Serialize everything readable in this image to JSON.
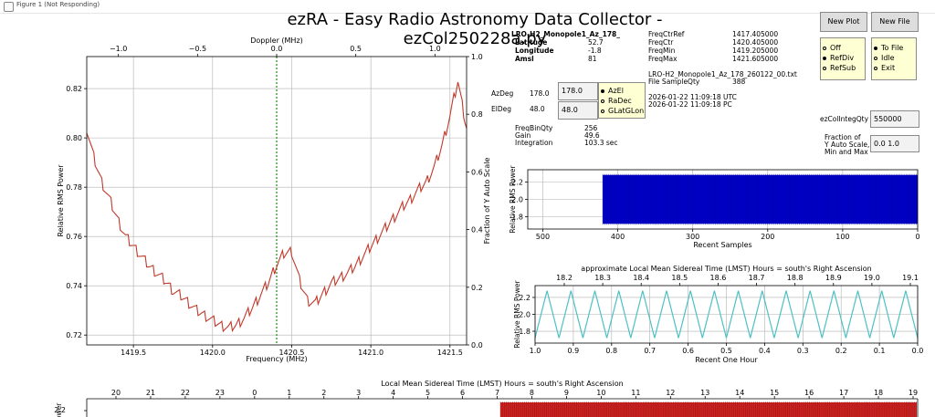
{
  "window": {
    "title": "Figure 1 (Not Responding)"
  },
  "app_title": "ezRA - Easy Radio Astronomy Data Collector - ezCol250228a.py",
  "info_left": [
    {
      "label": "LRO-H2_Monopole1_Az_178_",
      "value": ""
    },
    {
      "label": "Latitude",
      "value": "52.7"
    },
    {
      "label": "Longitude",
      "value": "-1.8"
    },
    {
      "label": "Amsl",
      "value": "81"
    }
  ],
  "info_freq": [
    {
      "label": "FreqCtrRef",
      "value": "1417.405000"
    },
    {
      "label": "FreqCtr",
      "value": "1420.405000"
    },
    {
      "label": "FreqMin",
      "value": "1419.205000"
    },
    {
      "label": "FreqMax",
      "value": "1421.605000"
    }
  ],
  "file_name": "LRO-H2_Monopole1_Az_178_260122_00.txt",
  "file_sample_label": "File SampleQty",
  "file_sample_qty": "388",
  "times": [
    "2026-01-22  11:09:18  UTC",
    "2026-01-22  11:09:18  PC"
  ],
  "az": {
    "label": "AzDeg",
    "value": "178.0",
    "input": "178.0"
  },
  "el": {
    "label": "ElDeg",
    "value": "48.0",
    "input": "48.0"
  },
  "coord_options": [
    {
      "label": "AzEl",
      "selected": true
    },
    {
      "label": "RaDec",
      "selected": false
    },
    {
      "label": "GLatGLon",
      "selected": false
    }
  ],
  "buttons": {
    "new_plot": "New Plot",
    "new_file": "New File"
  },
  "plot_mode_options": [
    {
      "label": "Off",
      "selected": false
    },
    {
      "label": "RefDiv",
      "selected": true
    },
    {
      "label": "RefSub",
      "selected": false
    }
  ],
  "file_mode_options": [
    {
      "label": "To File",
      "selected": true
    },
    {
      "label": "Idle",
      "selected": false
    },
    {
      "label": "Exit",
      "selected": false
    }
  ],
  "params": [
    {
      "label": "FreqBinQty",
      "value": "256"
    },
    {
      "label": "Gain",
      "value": "49.6"
    },
    {
      "label": "Integration",
      "value": "103.3  sec"
    }
  ],
  "integ": {
    "label": "ezColIntegQty",
    "value": "550000"
  },
  "yscale": {
    "label_lines": [
      "Fraction of",
      "Y Auto Scale,",
      "Min and Max"
    ],
    "value": "0.0   1.0"
  },
  "chart_data": [
    {
      "type": "line",
      "xlabel": "Frequency (MHz)",
      "ylabel": "Relative RMS Power",
      "top_xlabel": "Doppler (MHz)",
      "right_ylabel": "Fraction of Y Auto Scale",
      "xlim": [
        1419.205,
        1421.605
      ],
      "ylim": [
        0.716,
        0.833
      ],
      "xticks": [
        1419.5,
        1420.0,
        1420.5,
        1421.0,
        1421.5
      ],
      "xtick_labels": [
        "1419.5",
        "1420.0",
        "1420.5",
        "1421.0",
        "1421.5"
      ],
      "yticks": [
        0.72,
        0.74,
        0.76,
        0.78,
        0.8,
        0.82
      ],
      "ytick_labels": [
        "0.72",
        "0.74",
        "0.76",
        "0.78",
        "0.80",
        "0.82"
      ],
      "top_ticks": [
        -1.0,
        -0.5,
        0.0,
        0.5,
        1.0
      ],
      "top_tick_labels": [
        "−1.0",
        "−0.5",
        "0.0",
        "0.5",
        "1.0"
      ],
      "right_ticks": [
        0.0,
        0.2,
        0.4,
        0.6,
        0.8,
        1.0
      ],
      "right_tick_labels": [
        "0.0",
        "0.2",
        "0.4",
        "0.6",
        "0.8",
        "1.0"
      ],
      "vline_x": 1420.405,
      "x": [
        1419.205,
        1419.25,
        1419.3,
        1419.35,
        1419.4,
        1419.45,
        1419.5,
        1419.55,
        1419.6,
        1419.65,
        1419.7,
        1419.75,
        1419.8,
        1419.85,
        1419.9,
        1419.95,
        1420.0,
        1420.05,
        1420.1,
        1420.15,
        1420.2,
        1420.25,
        1420.3,
        1420.35,
        1420.4,
        1420.45,
        1420.5,
        1420.55,
        1420.6,
        1420.65,
        1420.7,
        1420.75,
        1420.8,
        1420.85,
        1420.9,
        1420.95,
        1421.0,
        1421.05,
        1421.1,
        1421.15,
        1421.2,
        1421.25,
        1421.3,
        1421.35,
        1421.4,
        1421.45,
        1421.5,
        1421.55,
        1421.605
      ],
      "y": [
        0.804,
        0.792,
        0.782,
        0.775,
        0.767,
        0.76,
        0.756,
        0.752,
        0.748,
        0.745,
        0.742,
        0.738,
        0.736,
        0.733,
        0.73,
        0.728,
        0.726,
        0.724,
        0.723,
        0.724,
        0.727,
        0.731,
        0.736,
        0.741,
        0.748,
        0.753,
        0.754,
        0.742,
        0.734,
        0.733,
        0.737,
        0.741,
        0.743,
        0.745,
        0.748,
        0.752,
        0.756,
        0.76,
        0.764,
        0.768,
        0.772,
        0.775,
        0.779,
        0.782,
        0.788,
        0.797,
        0.809,
        0.823,
        0.804
      ]
    },
    {
      "type": "area",
      "xlabel": "Recent Samples",
      "ylabel": "Relative RMS Power",
      "xlim": [
        520,
        0
      ],
      "ylim": [
        1.66,
        2.34
      ],
      "xticks": [
        500,
        400,
        300,
        200,
        100,
        0
      ],
      "xtick_labels": [
        "500",
        "400",
        "300",
        "200",
        "100",
        "0"
      ],
      "yticks": [
        1.8,
        2.0,
        2.2
      ],
      "ytick_labels": [
        "1.8",
        "2.0",
        "2.2"
      ],
      "x_range": [
        420,
        0
      ],
      "band": [
        1.72,
        2.28
      ],
      "color": "#0000cc"
    },
    {
      "type": "line",
      "title": "approximate Local Mean Sidereal Time (LMST) Hours = south's Right Ascension",
      "xlabel": "Recent One Hour",
      "ylabel": "Relative RMS Power",
      "xlim": [
        1.0,
        0.0
      ],
      "ylim": [
        1.66,
        2.34
      ],
      "xticks": [
        1.0,
        0.9,
        0.8,
        0.7,
        0.6,
        0.5,
        0.4,
        0.3,
        0.2,
        0.1,
        0.0
      ],
      "xtick_labels": [
        "1.0",
        "0.9",
        "0.8",
        "0.7",
        "0.6",
        "0.5",
        "0.4",
        "0.3",
        "0.2",
        "0.1",
        "0.0"
      ],
      "yticks": [
        1.8,
        2.0,
        2.2
      ],
      "ytick_labels": [
        "1.8",
        "2.0",
        "2.2"
      ],
      "top_tick_labels": [
        "18.2",
        "18.3",
        "18.4",
        "18.5",
        "18.6",
        "18.7",
        "18.8",
        "18.9",
        "19.0",
        "19.1"
      ],
      "wave_period": 0.0625,
      "band": [
        1.72,
        2.28
      ],
      "color": "#4dbfc4"
    },
    {
      "type": "bar",
      "title": "Local Mean Sidereal Time (LMST) Hours = south's Right Ascension",
      "ylabel": "Power",
      "top_tick_labels": [
        "20",
        "21",
        "22",
        "23",
        "0",
        "1",
        "2",
        "3",
        "4",
        "5",
        "6",
        "7",
        "8",
        "9",
        "10",
        "11",
        "12",
        "13",
        "14",
        "15",
        "16",
        "17",
        "18",
        "19"
      ],
      "yticks": [
        2.2
      ],
      "ytick_labels": [
        "2.2"
      ],
      "color": "#cc2222"
    }
  ]
}
